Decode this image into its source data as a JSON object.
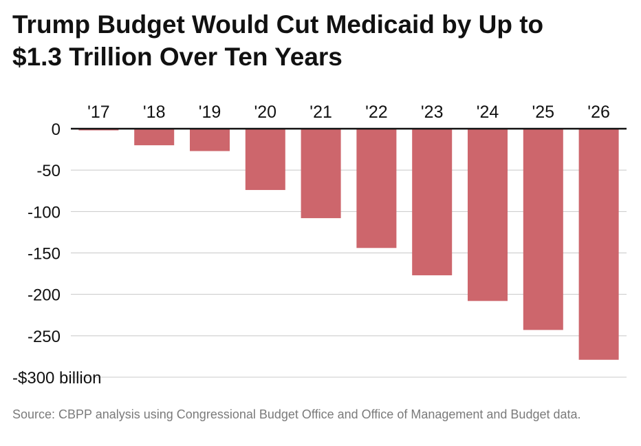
{
  "header": {
    "title_line1": "Trump Budget Would Cut Medicaid by Up to",
    "title_line2": "$1.3 Trillion Over Ten Years"
  },
  "footer": {
    "source": "Source: CBPP analysis using Congressional Budget Office and Office of Management and Budget data."
  },
  "colors": {
    "bar": "#cd666c",
    "grid": "#c8c8c8",
    "baseline": "#111111",
    "text": "#111111"
  },
  "chart_data": {
    "type": "bar",
    "title": "Trump Budget Would Cut Medicaid by Up to $1.3 Trillion Over Ten Years",
    "xlabel": "",
    "ylabel": "",
    "categories": [
      "'17",
      "'18",
      "'19",
      "'20",
      "'21",
      "'22",
      "'23",
      "'24",
      "'25",
      "'26"
    ],
    "values": [
      -2,
      -20,
      -27,
      -74,
      -108,
      -144,
      -177,
      -208,
      -243,
      -279
    ],
    "ylim": [
      -300,
      0
    ],
    "yticks": [
      0,
      -50,
      -100,
      -150,
      -200,
      -250,
      -300
    ],
    "ytick_labels": [
      "0",
      "-50",
      "-100",
      "-150",
      "-200",
      "-250",
      "-$300 billion"
    ],
    "x_axis_position": "top",
    "grid": true
  }
}
